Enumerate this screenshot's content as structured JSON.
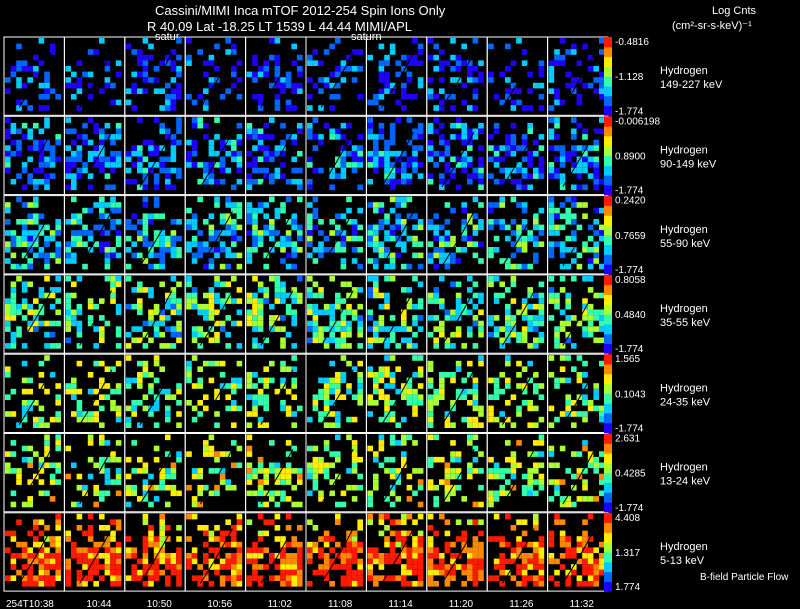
{
  "header": {
    "title": "Cassini/MIMI Inca mTOF  2012-254   Spin   Ions Only",
    "subtitle": "R       40.09 Lat -18.25 LT 1539 L         44.44  MIMI/APL",
    "saturn_labels": [
      "satur",
      "saturn"
    ],
    "colorbar_title": "Log Cnts",
    "colorbar_units": "(cm²-sr-s-keV)⁻¹"
  },
  "time_labels": [
    "254T10:38",
    "10:44",
    "10:50",
    "10:56",
    "11:02",
    "11:08",
    "11:14",
    "11:20",
    "11:26",
    "11:32"
  ],
  "footer_note": "B-field Particle Flow",
  "chart_data": {
    "type": "heatmap",
    "title": "Cassini/MIMI Inca mTOF  2012-254   Spin   Ions Only",
    "x": [
      "254T10:38",
      "10:44",
      "10:50",
      "10:56",
      "11:02",
      "11:08",
      "11:14",
      "11:20",
      "11:26",
      "11:32"
    ],
    "rows": [
      {
        "species": "Hydrogen",
        "energy": "149-227 keV",
        "cb_ticks": [
          "-0.4816",
          "-1.128",
          "-1.774"
        ],
        "max": -0.4816,
        "mid": -1.128,
        "min": -1.774,
        "bias": 0.12,
        "density": 0.28
      },
      {
        "species": "Hydrogen",
        "energy": "90-149 keV",
        "cb_ticks": [
          "-0.006198",
          "0.8900",
          "-1.774"
        ],
        "max": -0.006198,
        "mid": 0.89,
        "min": -1.774,
        "bias": 0.18,
        "density": 0.42
      },
      {
        "species": "Hydrogen",
        "energy": "55-90 keV",
        "cb_ticks": [
          "0.2420",
          "0.7659",
          "-1.774"
        ],
        "max": 0.242,
        "mid": 0.7659,
        "min": -1.774,
        "bias": 0.32,
        "density": 0.42
      },
      {
        "species": "Hydrogen",
        "energy": "35-55 keV",
        "cb_ticks": [
          "0.8058",
          "0.4840",
          "-1.774"
        ],
        "max": 0.8058,
        "mid": 0.484,
        "min": -1.774,
        "bias": 0.45,
        "density": 0.4
      },
      {
        "species": "Hydrogen",
        "energy": "24-35 keV",
        "cb_ticks": [
          "1.565",
          "0.1043",
          "-1.774"
        ],
        "max": 1.565,
        "mid": 0.1043,
        "min": -1.774,
        "bias": 0.52,
        "density": 0.32
      },
      {
        "species": "Hydrogen",
        "energy": "13-24 keV",
        "cb_ticks": [
          "2.631",
          "0.4285",
          "-1.774"
        ],
        "max": 2.631,
        "mid": 0.4285,
        "min": -1.774,
        "bias": 0.55,
        "density": 0.3
      },
      {
        "species": "Hydrogen",
        "energy": "5-13 keV",
        "cb_ticks": [
          "4.408",
          "1.317",
          "1.774"
        ],
        "max": 4.408,
        "mid": 1.317,
        "min": 1.774,
        "bias": 0.78,
        "density": 0.5
      }
    ],
    "colorscale": [
      "#1e00ff",
      "#0066ff",
      "#00ccff",
      "#33ffaa",
      "#aaff33",
      "#ffee00",
      "#ff8800",
      "#ff1a00"
    ],
    "legend_position": "right"
  }
}
